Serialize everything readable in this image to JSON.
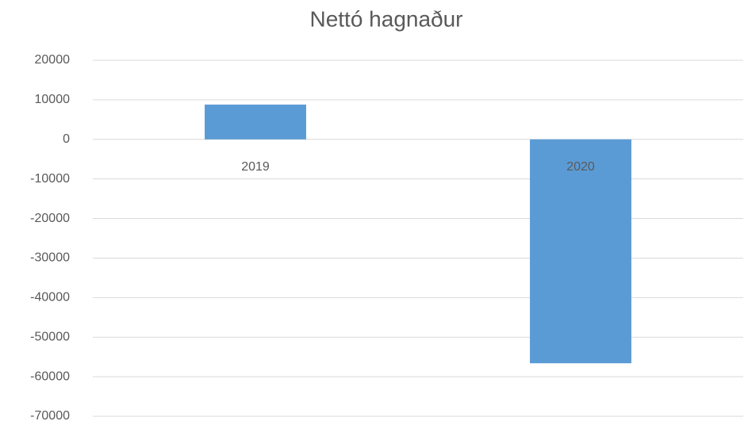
{
  "chart_data": {
    "type": "bar",
    "title": "Nettó hagnaður",
    "categories": [
      "2019",
      "2020"
    ],
    "values": [
      8800,
      -56600
    ],
    "color": "#5b9bd5",
    "ylim": [
      -70000,
      20000
    ],
    "yticks": [
      -70000,
      -60000,
      -50000,
      -40000,
      -30000,
      -20000,
      -10000,
      0,
      10000,
      20000
    ],
    "grid": true
  }
}
